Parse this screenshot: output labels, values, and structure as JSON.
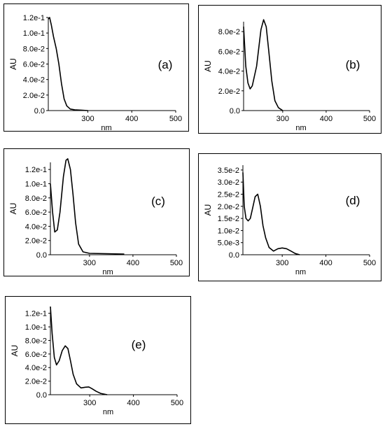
{
  "chart_data": [
    {
      "type": "line",
      "panel_label": "(a)",
      "xlabel": "nm",
      "ylabel": "AU",
      "xlim": [
        210,
        500
      ],
      "ylim": [
        0,
        0.12
      ],
      "x_ticks": [
        300,
        400,
        500
      ],
      "x_tick_labels": [
        "300",
        "400",
        "500"
      ],
      "y_ticks": [
        0,
        0.02,
        0.04,
        0.06,
        0.08,
        0.1,
        0.12
      ],
      "y_tick_labels": [
        "0.0",
        "2.0e-2",
        "4.0e-2",
        "6.0e-2",
        "8.0e-2",
        "1.0e-1",
        "1.2e-1"
      ],
      "series": [
        {
          "x": [
            210,
            213,
            217,
            222,
            228,
            234,
            240,
            246,
            252,
            260,
            270,
            285,
            300
          ],
          "y": [
            0.118,
            0.12,
            0.11,
            0.095,
            0.08,
            0.06,
            0.035,
            0.015,
            0.006,
            0.002,
            0.001,
            0.0005,
            0.0
          ]
        }
      ]
    },
    {
      "type": "line",
      "panel_label": "(b)",
      "xlabel": "nm",
      "ylabel": "AU",
      "xlim": [
        210,
        500
      ],
      "ylim": [
        0,
        0.09
      ],
      "x_ticks": [
        300,
        400,
        500
      ],
      "x_tick_labels": [
        "300",
        "400",
        "500"
      ],
      "y_ticks": [
        0,
        0.02,
        0.04,
        0.06,
        0.08
      ],
      "y_tick_labels": [
        "0.0",
        "2.0e-2",
        "4.0e-2",
        "6.0e-2",
        "8.0e-2"
      ],
      "series": [
        {
          "x": [
            210,
            215,
            220,
            225,
            230,
            240,
            250,
            256,
            262,
            268,
            275,
            282,
            290,
            300
          ],
          "y": [
            0.085,
            0.045,
            0.028,
            0.022,
            0.025,
            0.045,
            0.082,
            0.092,
            0.085,
            0.06,
            0.03,
            0.01,
            0.003,
            0.0
          ]
        }
      ]
    },
    {
      "type": "line",
      "panel_label": "(c)",
      "xlabel": "nm",
      "ylabel": "AU",
      "xlim": [
        210,
        500
      ],
      "ylim": [
        0,
        0.13
      ],
      "x_ticks": [
        300,
        400,
        500
      ],
      "x_tick_labels": [
        "300",
        "400",
        "500"
      ],
      "y_ticks": [
        0,
        0.02,
        0.04,
        0.06,
        0.08,
        0.1,
        0.12
      ],
      "y_tick_labels": [
        "0.0",
        "2.0e-2",
        "4.0e-2",
        "6.0e-2",
        "8.0e-2",
        "1.0e-1",
        "1.2e-1"
      ],
      "series": [
        {
          "x": [
            210,
            215,
            220,
            226,
            232,
            240,
            246,
            250,
            256,
            262,
            268,
            275,
            285,
            300,
            340,
            380
          ],
          "y": [
            0.1,
            0.06,
            0.032,
            0.035,
            0.06,
            0.11,
            0.133,
            0.135,
            0.12,
            0.085,
            0.045,
            0.015,
            0.004,
            0.002,
            0.0015,
            0.001
          ]
        }
      ]
    },
    {
      "type": "line",
      "panel_label": "(d)",
      "xlabel": "nm",
      "ylabel": "AU",
      "xlim": [
        210,
        500
      ],
      "ylim": [
        0,
        0.037
      ],
      "x_ticks": [
        300,
        400,
        500
      ],
      "x_tick_labels": [
        "300",
        "400",
        "500"
      ],
      "y_ticks": [
        0,
        0.005,
        0.01,
        0.015,
        0.02,
        0.025,
        0.03,
        0.035
      ],
      "y_tick_labels": [
        "0.0",
        "5.0e-3",
        "1.0e-2",
        "1.5e-2",
        "2.0e-2",
        "2.5e-2",
        "3.0e-2",
        "3.5e-2"
      ],
      "series": [
        {
          "x": [
            210,
            213,
            217,
            222,
            227,
            232,
            238,
            244,
            250,
            256,
            262,
            270,
            280,
            290,
            300,
            310,
            320,
            330,
            340
          ],
          "y": [
            0.034,
            0.02,
            0.015,
            0.014,
            0.015,
            0.019,
            0.024,
            0.025,
            0.02,
            0.012,
            0.007,
            0.003,
            0.0015,
            0.0025,
            0.0028,
            0.0025,
            0.0015,
            0.0005,
            0.0
          ]
        }
      ]
    },
    {
      "type": "line",
      "panel_label": "(e)",
      "xlabel": "nm",
      "ylabel": "AU",
      "xlim": [
        210,
        500
      ],
      "ylim": [
        0,
        0.13
      ],
      "x_ticks": [
        300,
        400,
        500
      ],
      "x_tick_labels": [
        "300",
        "400",
        "500"
      ],
      "y_ticks": [
        0,
        0.02,
        0.04,
        0.06,
        0.08,
        0.1,
        0.12
      ],
      "y_tick_labels": [
        "0.0",
        "2.0e-2",
        "4.0e-2",
        "6.0e-2",
        "8.0e-2",
        "1.0e-1",
        "1.2e-1"
      ],
      "series": [
        {
          "x": [
            210,
            214,
            219,
            224,
            230,
            237,
            244,
            250,
            256,
            262,
            270,
            280,
            290,
            298,
            305,
            315,
            325,
            340
          ],
          "y": [
            0.13,
            0.09,
            0.055,
            0.044,
            0.05,
            0.065,
            0.072,
            0.068,
            0.05,
            0.03,
            0.016,
            0.01,
            0.011,
            0.0115,
            0.009,
            0.005,
            0.002,
            0.0
          ]
        }
      ]
    }
  ]
}
